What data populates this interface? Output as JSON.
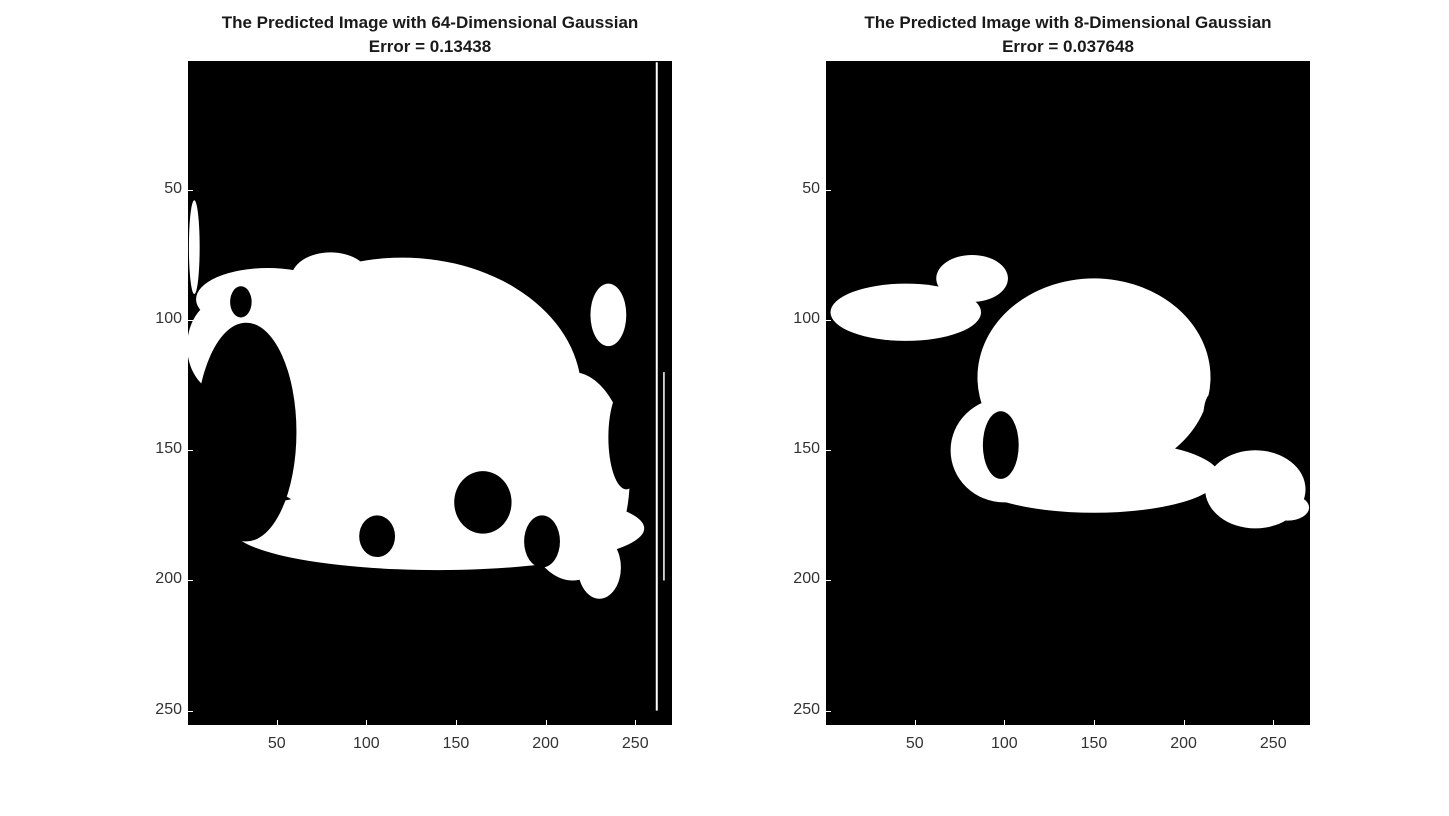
{
  "chart_data": [
    {
      "type": "heatmap",
      "title": "The Predicted Image with 64-Dimensional Gaussian",
      "subtitle": "Error = 0.13438",
      "colormap": "gray",
      "colors": {
        "background": "#000000",
        "foreground": "#ffffff"
      },
      "xlim": [
        0.5,
        270.5
      ],
      "ylim": [
        0.5,
        255.5
      ],
      "y_reversed": true,
      "xticks": [
        50,
        100,
        150,
        200,
        250
      ],
      "yticks": [
        50,
        100,
        150,
        200,
        250
      ],
      "xtick_labels": [
        "50",
        "100",
        "150",
        "200",
        "250"
      ],
      "ytick_labels": [
        "50",
        "100",
        "150",
        "200",
        "250"
      ],
      "white_regions": [
        {
          "shape": "ellipse",
          "cx": 120,
          "cy": 128,
          "rx": 100,
          "ry": 52
        },
        {
          "shape": "ellipse",
          "cx": 80,
          "cy": 84,
          "rx": 22,
          "ry": 10
        },
        {
          "shape": "ellipse",
          "cx": 45,
          "cy": 92,
          "rx": 40,
          "ry": 12
        },
        {
          "shape": "ellipse",
          "cx": 20,
          "cy": 110,
          "rx": 20,
          "ry": 18
        },
        {
          "shape": "ellipse",
          "cx": 140,
          "cy": 180,
          "rx": 115,
          "ry": 16
        },
        {
          "shape": "ellipse",
          "cx": 215,
          "cy": 160,
          "rx": 32,
          "ry": 40
        },
        {
          "shape": "ellipse",
          "cx": 230,
          "cy": 195,
          "rx": 12,
          "ry": 12
        },
        {
          "shape": "ellipse",
          "cx": 4,
          "cy": 72,
          "rx": 3,
          "ry": 18
        },
        {
          "shape": "ellipse",
          "cx": 235,
          "cy": 98,
          "rx": 10,
          "ry": 12
        }
      ],
      "black_regions": [
        {
          "shape": "ellipse",
          "cx": 33,
          "cy": 143,
          "rx": 28,
          "ry": 42
        },
        {
          "shape": "ellipse",
          "cx": 30,
          "cy": 93,
          "rx": 6,
          "ry": 6
        },
        {
          "shape": "ellipse",
          "cx": 106,
          "cy": 183,
          "rx": 10,
          "ry": 8
        },
        {
          "shape": "ellipse",
          "cx": 165,
          "cy": 170,
          "rx": 16,
          "ry": 12
        },
        {
          "shape": "ellipse",
          "cx": 198,
          "cy": 185,
          "rx": 10,
          "ry": 10
        },
        {
          "shape": "ellipse",
          "cx": 245,
          "cy": 145,
          "rx": 10,
          "ry": 20
        }
      ],
      "white_lines": [
        {
          "x1": 262,
          "y1": 1,
          "x2": 262,
          "y2": 250,
          "width": 2
        },
        {
          "x1": 266,
          "y1": 120,
          "x2": 266,
          "y2": 200,
          "width": 1.5
        }
      ]
    },
    {
      "type": "heatmap",
      "title": "The Predicted Image with 8-Dimensional Gaussian",
      "subtitle": "Error = 0.037648",
      "colormap": "gray",
      "colors": {
        "background": "#000000",
        "foreground": "#ffffff"
      },
      "xlim": [
        0.5,
        270.5
      ],
      "ylim": [
        0.5,
        255.5
      ],
      "y_reversed": true,
      "xticks": [
        50,
        100,
        150,
        200,
        250
      ],
      "yticks": [
        50,
        100,
        150,
        200,
        250
      ],
      "xtick_labels": [
        "50",
        "100",
        "150",
        "200",
        "250"
      ],
      "ytick_labels": [
        "50",
        "100",
        "150",
        "200",
        "250"
      ],
      "white_regions": [
        {
          "shape": "ellipse",
          "cx": 150,
          "cy": 122,
          "rx": 65,
          "ry": 38
        },
        {
          "shape": "ellipse",
          "cx": 82,
          "cy": 84,
          "rx": 20,
          "ry": 9
        },
        {
          "shape": "ellipse",
          "cx": 45,
          "cy": 97,
          "rx": 42,
          "ry": 11
        },
        {
          "shape": "ellipse",
          "cx": 150,
          "cy": 160,
          "rx": 70,
          "ry": 14
        },
        {
          "shape": "ellipse",
          "cx": 240,
          "cy": 165,
          "rx": 28,
          "ry": 15
        },
        {
          "shape": "ellipse",
          "cx": 258,
          "cy": 172,
          "rx": 12,
          "ry": 5
        },
        {
          "shape": "ellipse",
          "cx": 100,
          "cy": 150,
          "rx": 30,
          "ry": 20
        }
      ],
      "black_regions": [
        {
          "shape": "ellipse",
          "cx": 98,
          "cy": 148,
          "rx": 10,
          "ry": 13
        },
        {
          "shape": "ellipse",
          "cx": 216,
          "cy": 137,
          "rx": 5,
          "ry": 9
        }
      ],
      "white_lines": []
    }
  ]
}
